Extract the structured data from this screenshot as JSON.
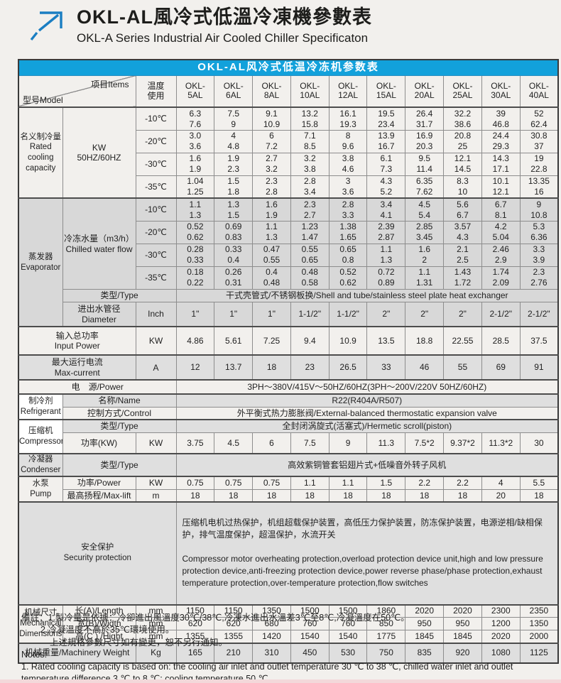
{
  "page": {
    "title_zh": "OKL-AL風冷式低溫冷凍機參數表",
    "title_en": "OKL-A Series Industrial Air Cooled Chiller Specificaton"
  },
  "colors": {
    "caption_blue": "#12a1db",
    "arrow_blue": "#1b7ec2",
    "evaporator_row_grey": "#d8d8d8",
    "alt_row_grey": "#dfdfdf"
  },
  "table": {
    "caption": "OKL-AL风冷式低温冷冻机参数表",
    "corner_model": "型号Model",
    "corner_items": "项目Items",
    "temp_header": "温度\n使用",
    "models": [
      "OKL-\n5AL",
      "OKL-\n6AL",
      "OKL-\n8AL",
      "OKL-\n10AL",
      "OKL-\n12AL",
      "OKL-\n15AL",
      "OKL-\n20AL",
      "OKL-\n25AL",
      "OKL-\n30AL",
      "OKL-\n40AL"
    ]
  },
  "rated": {
    "group": "名义制冷量\nRated\ncooling\ncapacity",
    "unit": "KW\n50HZ/60HZ",
    "rows": [
      {
        "temp": "-10℃",
        "values": [
          "6.3\n7.6",
          "7.5\n9",
          "9.1\n10.9",
          "13.2\n15.8",
          "16.1\n19.3",
          "19.5\n23.4",
          "26.4\n31.7",
          "32.2\n38.6",
          "39\n46.8",
          "52\n62.4"
        ]
      },
      {
        "temp": "-20℃",
        "values": [
          "3.0\n3.6",
          "4\n4.8",
          "6\n7.2",
          "7.1\n8.5",
          "8\n9.6",
          "13.9\n16.7",
          "16.9\n20.3",
          "20.8\n25",
          "24.4\n29.3",
          "30.8\n37"
        ]
      },
      {
        "temp": "-30℃",
        "values": [
          "1.6\n1.9",
          "1.9\n2.3",
          "2.7\n3.2",
          "3.2\n3.8",
          "3.8\n4.6",
          "6.1\n7.3",
          "9.5\n11.4",
          "12.1\n14.5",
          "14.3\n17.1",
          "19\n22.8"
        ]
      },
      {
        "temp": "-35℃",
        "values": [
          "1.04\n1.25",
          "1.5\n1.8",
          "2.3\n2.8",
          "2.8\n3.4",
          "3\n3.6",
          "4.3\n5.2",
          "6.35\n7.62",
          "8.3\n10",
          "10.1\n12.1",
          "13.35\n16"
        ]
      }
    ]
  },
  "evaporator": {
    "group": "蒸发器\nEvaporator",
    "flow_label": "冷冻水量（m3/h）\nChilled water flow",
    "rows": [
      {
        "temp": "-10℃",
        "values": [
          "1.1\n1.3",
          "1.3\n1.5",
          "1.6\n1.9",
          "2.3\n2.7",
          "2.8\n3.3",
          "3.4\n4.1",
          "4.5\n5.4",
          "5.6\n6.7",
          "6.7\n8.1",
          "9\n10.8"
        ]
      },
      {
        "temp": "-20℃",
        "values": [
          "0.52\n0.62",
          "0.69\n0.83",
          "1.1\n1.3",
          "1.23\n1.47",
          "1.38\n1.65",
          "2.39\n2.87",
          "2.85\n3.45",
          "3.57\n4.3",
          "4.2\n5.04",
          "5.3\n6.36"
        ]
      },
      {
        "temp": "-30℃",
        "values": [
          "0.28\n0.33",
          "0.33\n0.4",
          "0.47\n0.55",
          "0.55\n0.65",
          "0.65\n0.8",
          "1.1\n1.3",
          "1.6\n2",
          "2.1\n2.5",
          "2.46\n2.9",
          "3.3\n3.9"
        ]
      },
      {
        "temp": "-35℃",
        "values": [
          "0.18\n0.22",
          "0.26\n0.31",
          "0.4\n0.48",
          "0.48\n0.58",
          "0.52\n0.62",
          "0.72\n0.89",
          "1.1\n1.31",
          "1.43\n1.72",
          "1.74\n2.09",
          "2.3\n2.76"
        ]
      }
    ],
    "type_label": "类型/Type",
    "type_value": "干式壳管式/不锈钢板换/Shell and tube/stainless steel plate heat exchanger",
    "diameter_label": "进出水管径\nDiameter",
    "diameter_unit": "Inch",
    "diameter_values": [
      "1\"",
      "1\"",
      "1\"",
      "1-1/2\"",
      "1-1/2\"",
      "2\"",
      "2\"",
      "2\"",
      "2-1/2\"",
      "2-1/2\""
    ]
  },
  "input_power": {
    "label": "输入总功率\nInput Power",
    "unit": "KW",
    "values": [
      "4.86",
      "5.61",
      "7.25",
      "9.4",
      "10.9",
      "13.5",
      "18.8",
      "22.55",
      "28.5",
      "37.5"
    ]
  },
  "max_current": {
    "label": "最大运行电流\nMax-current",
    "unit": "A",
    "values": [
      "12",
      "13.7",
      "18",
      "23",
      "26.5",
      "33",
      "46",
      "55",
      "69",
      "91"
    ]
  },
  "power_supply": {
    "label": "电　源/Power",
    "value": "3PH～380V/415V～50HZ/60HZ(3PH～200V/220V 50HZ/60HZ)"
  },
  "refrigerant": {
    "group": "制冷剂\nRefrigerant",
    "name_label": "名称/Name",
    "name_value": "R22(R404A/R507)",
    "control_label": "控制方式/Control",
    "control_value": "外平衡式热力膨胀阀/External-balanced thermostatic expansion valve"
  },
  "compressor": {
    "group": "压缩机\nCompressor",
    "type_label": "类型/Type",
    "type_value": "全封闭涡旋式(活塞式)/Hermetic scroll(piston)",
    "power_label": "功率(KW)",
    "power_unit": "KW",
    "power_values": [
      "3.75",
      "4.5",
      "6",
      "7.5",
      "9",
      "11.3",
      "7.5*2",
      "9.37*2",
      "11.3*2",
      "30"
    ]
  },
  "condenser": {
    "group": "冷凝器\nCondenser",
    "type_label": "类型/Type",
    "type_value": "高效紫铜管套铝翅片式+低噪音外转子风机"
  },
  "pump": {
    "group": "水泵\nPump",
    "power_label": "功率/Power",
    "power_unit": "KW",
    "power_values": [
      "0.75",
      "0.75",
      "0.75",
      "1.1",
      "1.1",
      "1.5",
      "2.2",
      "2.2",
      "4",
      "5.5"
    ],
    "lift_label": "最高扬程/Max-lift",
    "lift_unit": "m",
    "lift_values": [
      "18",
      "18",
      "18",
      "18",
      "18",
      "18",
      "18",
      "18",
      "20",
      "18"
    ]
  },
  "security": {
    "label": "安全保护\nSecurity protection",
    "text_zh": "压缩机电机过热保护，机组超载保护装置，高低压力保护装置，防冻保护装置，电源逆相/缺相保护，排气温度保护，超温保护，水流开关",
    "text_en": "Compressor motor overheating protection,overload protection device unit,high and low pressure protection device,anti-freezing protection device,power reverse phase/phase protection,exhaust temperature protection,over-temperature protection,flow switches"
  },
  "mechanical": {
    "group": "机械尺寸\nMechanical\nDimensions",
    "rows": [
      {
        "label": "长(A)/Length",
        "unit": "mm",
        "values": [
          "1150",
          "1150",
          "1350",
          "1500",
          "1500",
          "1860",
          "2020",
          "2020",
          "2300",
          "2350"
        ]
      },
      {
        "label": "宽(B)/Width",
        "unit": "mm",
        "values": [
          "620",
          "620",
          "680",
          "760",
          "760",
          "850",
          "950",
          "950",
          "1200",
          "1350"
        ]
      },
      {
        "label": "高(C ) /Hight",
        "unit": "mm",
        "values": [
          "1355",
          "1355",
          "1420",
          "1540",
          "1540",
          "1775",
          "1845",
          "1845",
          "2020",
          "2000"
        ]
      }
    ]
  },
  "weight": {
    "label": "机械重量/Machinery Weight",
    "unit": "Kg",
    "values": [
      "165",
      "210",
      "310",
      "450",
      "530",
      "750",
      "835",
      "920",
      "1080",
      "1125"
    ]
  },
  "notes": {
    "zh1": "備註：1.製冷量是依據：冷卻進出風溫度30℃/38℃,冷凍水進出水溫差3℃至8℃,冷凝溫度在50℃。",
    "zh2": "2.冷凝溫度不高於35℃環境使用。",
    "zh3": "上述規格參數尺寸如有變更，恕不另行通知。",
    "en_title": "Notes:",
    "en1": "1. Rated cooling capacity is based on: the cooling air inlet and outlet temperature 30 ℃ to 38 ℃, chilled water inlet and outlet temperature difference 3 ℃ to 8 ℃; cooling temperature 50 ℃."
  }
}
